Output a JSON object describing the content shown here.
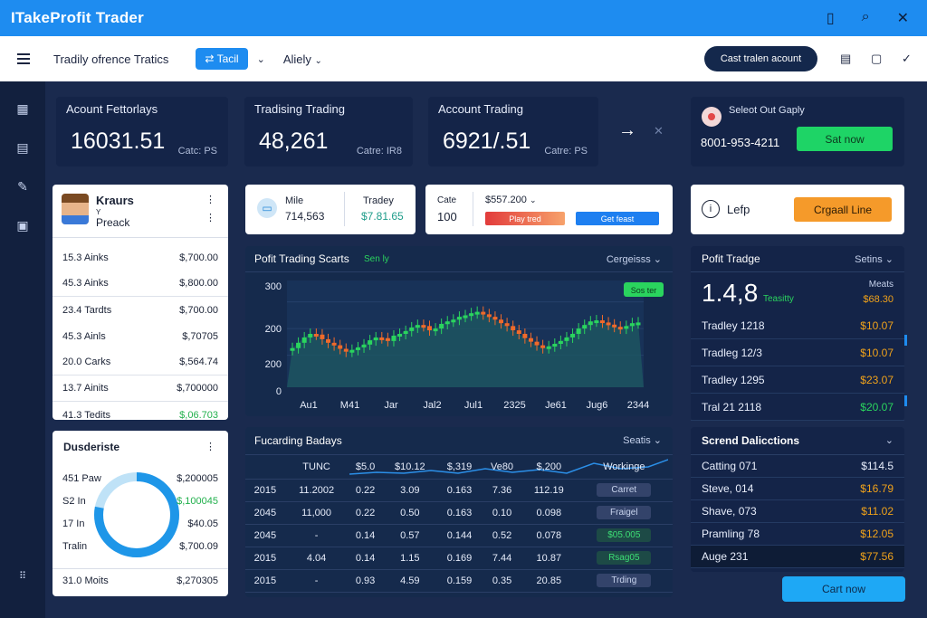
{
  "app": {
    "title": "ITakeProfit Trader"
  },
  "toolbar": {
    "title": "Tradily ofrence Tratics",
    "button": "⇄ Tacil",
    "select": "Aliely",
    "pill": "Cast tralen acount"
  },
  "stats": [
    {
      "label": "Acount Fettorlays",
      "value": "16031.51",
      "sub": "Catc: PS"
    },
    {
      "label": "Tradising Trading",
      "value": "48,261",
      "sub": "Catre: IR8"
    },
    {
      "label": "Account Trading",
      "value": "6921/.51",
      "sub": "Catre: PS"
    }
  ],
  "contact": {
    "label": "Seleot Out Gaply",
    "phone": "8001-953-4211",
    "button": "Sat now"
  },
  "profile": {
    "name": "Kraurs",
    "sub": "Y",
    "role": "Preack",
    "rows": [
      {
        "l": "15.3 Ainks",
        "v": "$,700.00"
      },
      {
        "l": "45.3 Ainks",
        "v": "$,800.00"
      },
      {
        "l": "23.4 Tardts",
        "v": "$,700.00"
      },
      {
        "l": "45.3 Ainls",
        "v": "$,70705"
      },
      {
        "l": "20.0 Carks",
        "v": "$,564.74"
      },
      {
        "l": "13.7 Ainits",
        "v": "$,700000"
      },
      {
        "l": "41.3 Tedits",
        "v": "$,06.703",
        "green": true
      }
    ]
  },
  "mini": {
    "a_label": "Mile",
    "a_val": "714,563",
    "b_label": "Tradey",
    "b_val": "$7.81.65"
  },
  "order": {
    "label": "Cate",
    "qty": "100",
    "price": "$557.200",
    "btn_red": "Play tred",
    "btn_blue": "Get feast"
  },
  "help": {
    "label": "Lefp",
    "button": "Crgaall Line"
  },
  "chart_panel": {
    "title": "Pofit Trading Scarts",
    "tag": "Sen ly",
    "menu": "Cergeisss",
    "badge": "Sos ter"
  },
  "chart_data": {
    "type": "candlestick",
    "x_ticks": [
      "Au1",
      "M41",
      "Jar",
      "Jal2",
      "Jul1",
      "2325",
      "Je61",
      "Jug6",
      "2344"
    ],
    "y_ticks": [
      "300",
      "200",
      "200",
      "0"
    ],
    "closes": [
      110,
      125,
      140,
      150,
      148,
      135,
      125,
      118,
      108,
      100,
      105,
      112,
      120,
      132,
      140,
      138,
      130,
      145,
      150,
      158,
      168,
      175,
      172,
      160,
      165,
      178,
      185,
      190,
      198,
      202,
      208,
      212,
      205,
      198,
      190,
      180,
      172,
      160,
      150,
      138,
      128,
      118,
      110,
      115,
      122,
      130,
      140,
      150,
      165,
      175,
      185,
      188,
      182,
      176,
      170,
      165,
      172,
      180,
      182
    ],
    "ylim": [
      0,
      300
    ]
  },
  "donut": {
    "title": "Dusderiste",
    "value": 0.78,
    "rows": [
      {
        "l": "451 Paw",
        "v": "$,200005"
      },
      {
        "l": "S2 In",
        "v": "$,100045",
        "green": true
      },
      {
        "l": "17 In",
        "v": "$40.05"
      },
      {
        "l": "Tralin",
        "v": "$,700.09"
      }
    ],
    "footer_l": "31.0 Moits",
    "footer_v": "$,270305"
  },
  "table": {
    "title": "Fucarding Badays",
    "menu": "Seatis",
    "headers": [
      "TUNC",
      "$5.0",
      "$10.12",
      "$,319",
      "Ve80",
      "$,200",
      "Workinge"
    ],
    "rows": [
      {
        "c": [
          "2015",
          "11.2002",
          "0.22",
          "3.09",
          "0.163",
          "7.36",
          "112.19"
        ],
        "tag": "Carret",
        "g": false
      },
      {
        "c": [
          "2045",
          "11,000",
          "0.22",
          "0.50",
          "0.163",
          "0.10",
          "0.098"
        ],
        "tag": "Fraigel",
        "g": false
      },
      {
        "c": [
          "2045",
          "-",
          "0.14",
          "0.57",
          "0.144",
          "0.52",
          "0.078"
        ],
        "tag": "$05.005",
        "g": true
      },
      {
        "c": [
          "2015",
          "4.04",
          "0.14",
          "1.15",
          "0.169",
          "7.44",
          "10.87"
        ],
        "tag": "Rsag05",
        "g": true
      },
      {
        "c": [
          "2015",
          "-",
          "0.93",
          "4.59",
          "0.159",
          "0.35",
          "20.85"
        ],
        "tag": "Trding",
        "g": false
      }
    ]
  },
  "profit_trade": {
    "title": "Pofit Tradge",
    "menu": "Setins",
    "big": "1.4,8",
    "big_tag": "Teasitty",
    "mini_lbl": "Meats",
    "mini_val": "$68.30",
    "rows": [
      {
        "l": "Tradley 1218",
        "v": "$10.07"
      },
      {
        "l": "Tradleg 12/3",
        "v": "$10.07"
      },
      {
        "l": "Tradley 1295",
        "v": "$23.07"
      },
      {
        "l": "Tral 21 2118",
        "v": "$20.07",
        "green": true
      }
    ]
  },
  "scrend": {
    "title": "Scrend Dalicctions",
    "rows": [
      {
        "l": "Catting 071",
        "v": "$114.5",
        "c": "w"
      },
      {
        "l": "Steve, 014",
        "v": "$16.79",
        "c": "o"
      },
      {
        "l": "Shave, 073",
        "v": "$11.02",
        "c": "o"
      },
      {
        "l": "Pramling 78",
        "v": "$12.05",
        "c": "o"
      },
      {
        "l": "Auge 231",
        "v": "$77.56",
        "c": "o",
        "hl": true
      }
    ],
    "button": "Cart now"
  }
}
